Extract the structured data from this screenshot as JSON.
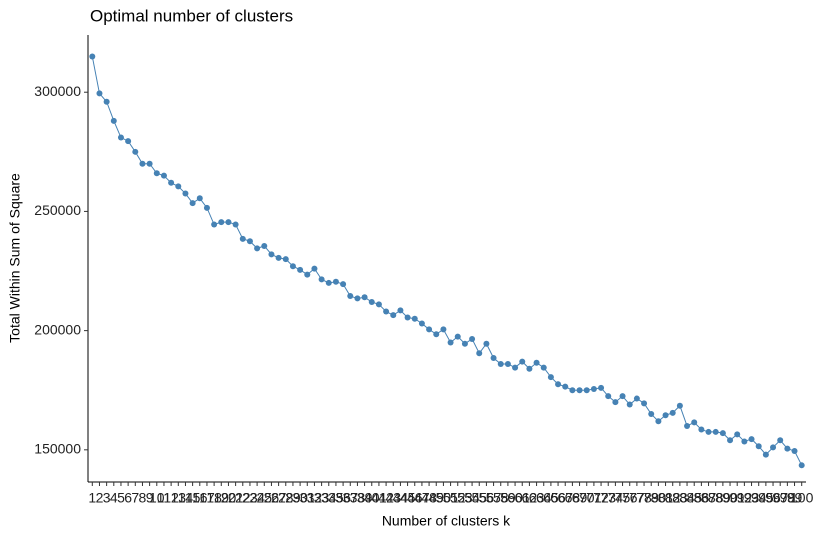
{
  "chart_data": {
    "type": "line",
    "title": "Optimal number of clusters",
    "xlabel": "Number of clusters k",
    "ylabel": "Total Within Sum of Square",
    "categories": [
      "1",
      "2",
      "3",
      "4",
      "5",
      "6",
      "7",
      "8",
      "9",
      "10",
      "11",
      "12",
      "13",
      "14",
      "15",
      "16",
      "17",
      "18",
      "19",
      "20",
      "21",
      "22",
      "23",
      "24",
      "25",
      "26",
      "27",
      "28",
      "29",
      "30",
      "31",
      "32",
      "33",
      "34",
      "35",
      "36",
      "37",
      "38",
      "39",
      "40",
      "41",
      "42",
      "43",
      "44",
      "45",
      "46",
      "47",
      "48",
      "49",
      "50",
      "51",
      "52",
      "53",
      "54",
      "55",
      "56",
      "57",
      "58",
      "59",
      "60",
      "61",
      "62",
      "63",
      "64",
      "65",
      "66",
      "67",
      "68",
      "69",
      "70",
      "71",
      "72",
      "73",
      "74",
      "75",
      "76",
      "77",
      "78",
      "79",
      "80",
      "81",
      "82",
      "83",
      "84",
      "85",
      "86",
      "87",
      "88",
      "89",
      "90",
      "91",
      "92",
      "93",
      "94",
      "95",
      "96",
      "97",
      "98",
      "99",
      "100"
    ],
    "values": [
      315000,
      299500,
      296000,
      288000,
      281000,
      279500,
      275000,
      270000,
      270000,
      266000,
      265000,
      262000,
      260500,
      257500,
      253500,
      255500,
      251500,
      244500,
      245500,
      245500,
      244500,
      238500,
      237500,
      234500,
      235500,
      232000,
      230500,
      230000,
      227000,
      225500,
      223500,
      226000,
      221500,
      220000,
      220500,
      219500,
      214500,
      213500,
      214000,
      212000,
      211000,
      208000,
      206500,
      208500,
      205500,
      205000,
      203000,
      200500,
      198500,
      200500,
      195000,
      197500,
      194500,
      196500,
      190500,
      194500,
      188500,
      186000,
      186000,
      184500,
      187000,
      184000,
      186500,
      184500,
      180500,
      177500,
      176500,
      175000,
      175000,
      175000,
      175500,
      176000,
      172500,
      170000,
      172500,
      169000,
      171500,
      169500,
      165000,
      162000,
      164500,
      165500,
      168500,
      160000,
      161500,
      158500,
      157500,
      157500,
      157000,
      154000,
      156500,
      153500,
      154500,
      151500,
      148000,
      151000,
      154000,
      150500,
      149500,
      143500
    ],
    "color": "#4682b4",
    "ylim": [
      136500,
      324000
    ],
    "yticks": [
      150000,
      200000,
      250000,
      300000
    ],
    "grid": false
  }
}
